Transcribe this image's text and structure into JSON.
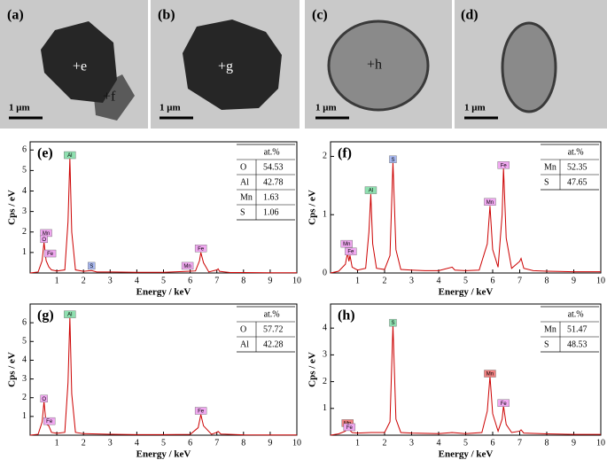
{
  "images": [
    {
      "label": "(a)",
      "markers": [
        "+e",
        "+f"
      ],
      "scale": "1 μm"
    },
    {
      "label": "(b)",
      "markers": [
        "+g"
      ],
      "scale": "1 μm"
    },
    {
      "label": "(c)",
      "markers": [
        "+h"
      ],
      "scale": "1 μm"
    },
    {
      "label": "(d)",
      "markers": [],
      "scale": "1 μm"
    }
  ],
  "chart_data": [
    {
      "type": "line",
      "label": "(e)",
      "x_label": "Energy / keV",
      "y_label": "Cps / eV",
      "color": "#cc0000",
      "x": [
        0,
        0.3,
        0.45,
        0.52,
        0.6,
        0.7,
        0.8,
        1.0,
        1.3,
        1.42,
        1.49,
        1.56,
        1.7,
        2.0,
        2.3,
        2.5,
        3,
        4,
        5,
        5.9,
        6.2,
        6.35,
        6.4,
        6.5,
        6.7,
        7.0,
        7.05,
        7.1,
        7.5,
        8,
        9,
        10
      ],
      "values": [
        0,
        0.05,
        0.6,
        1.5,
        0.6,
        0.3,
        0.15,
        0.1,
        0.15,
        2.5,
        5.6,
        2.0,
        0.15,
        0.08,
        0.12,
        0.05,
        0.05,
        0.03,
        0.03,
        0.08,
        0.1,
        0.6,
        1.0,
        0.5,
        0.05,
        0.15,
        0.2,
        0.08,
        0.02,
        0.02,
        0.01,
        0.01
      ],
      "xlim": [
        0,
        10
      ],
      "xticks": [
        1,
        2,
        3,
        4,
        5,
        6,
        7,
        8,
        9,
        10
      ],
      "ylim": [
        0,
        6.4
      ],
      "yticks": [
        1,
        2,
        3,
        4,
        5,
        6
      ],
      "annotations": [
        {
          "text": "Al",
          "x": 1.49,
          "y": 5.75,
          "color": "#8fe0b0"
        },
        {
          "text": "Mn",
          "x": 0.6,
          "y": 1.95,
          "color": "#f0a8f0"
        },
        {
          "text": "O",
          "x": 0.52,
          "y": 1.65,
          "color": "#f0a8f0"
        },
        {
          "text": "Fe",
          "x": 0.75,
          "y": 0.95,
          "color": "#f0a8f0"
        },
        {
          "text": "S",
          "x": 2.3,
          "y": 0.35,
          "color": "#a8b8f0"
        },
        {
          "text": "Mn",
          "x": 5.9,
          "y": 0.35,
          "color": "#f0a8f0"
        },
        {
          "text": "Fe",
          "x": 6.4,
          "y": 1.2,
          "color": "#f0a8f0"
        }
      ],
      "table": {
        "header": "at.%",
        "rows": [
          [
            "O",
            54.53
          ],
          [
            "Al",
            42.78
          ],
          [
            "Mn",
            1.63
          ],
          [
            "S",
            1.06
          ]
        ]
      }
    },
    {
      "type": "line",
      "label": "(f)",
      "x_label": "Energy / keV",
      "y_label": "Cps / eV",
      "color": "#cc0000",
      "x": [
        0,
        0.3,
        0.55,
        0.63,
        0.68,
        0.72,
        0.8,
        1.0,
        1.3,
        1.42,
        1.49,
        1.56,
        1.7,
        2.0,
        2.2,
        2.31,
        2.42,
        2.6,
        3.0,
        3.5,
        4.0,
        4.5,
        4.6,
        5.0,
        5.5,
        5.8,
        5.9,
        6.0,
        6.2,
        6.35,
        6.4,
        6.5,
        6.7,
        7.0,
        7.05,
        7.15,
        7.5,
        8,
        9,
        10
      ],
      "values": [
        0,
        0.03,
        0.15,
        0.35,
        0.2,
        0.3,
        0.1,
        0.05,
        0.08,
        0.7,
        1.35,
        0.5,
        0.08,
        0.06,
        0.3,
        1.9,
        0.4,
        0.06,
        0.05,
        0.04,
        0.04,
        0.1,
        0.05,
        0.04,
        0.05,
        0.5,
        1.15,
        0.4,
        0.1,
        1.0,
        1.8,
        0.6,
        0.08,
        0.2,
        0.25,
        0.08,
        0.04,
        0.03,
        0.02,
        0.02
      ],
      "xlim": [
        0,
        10
      ],
      "xticks": [
        1,
        2,
        3,
        4,
        5,
        6,
        7,
        8,
        9,
        10
      ],
      "ylim": [
        0,
        2.25
      ],
      "yticks": [
        0,
        1,
        2
      ],
      "annotations": [
        {
          "text": "S",
          "x": 2.31,
          "y": 1.95,
          "color": "#a8b8f0"
        },
        {
          "text": "Al",
          "x": 1.49,
          "y": 1.42,
          "color": "#8fe0b0"
        },
        {
          "text": "Mn",
          "x": 0.6,
          "y": 0.5,
          "color": "#f0a8f0"
        },
        {
          "text": "Fe",
          "x": 0.75,
          "y": 0.37,
          "color": "#f0a8f0"
        },
        {
          "text": "Mn",
          "x": 5.9,
          "y": 1.22,
          "color": "#f0a8f0"
        },
        {
          "text": "Fe",
          "x": 6.4,
          "y": 1.85,
          "color": "#f0a8f0"
        }
      ],
      "table": {
        "header": "at.%",
        "rows": [
          [
            "Mn",
            52.35
          ],
          [
            "S",
            47.65
          ]
        ]
      }
    },
    {
      "type": "line",
      "label": "(g)",
      "x_label": "Energy / keV",
      "y_label": "Cps / eV",
      "color": "#cc0000",
      "x": [
        0,
        0.3,
        0.45,
        0.52,
        0.6,
        0.7,
        0.8,
        1.0,
        1.3,
        1.42,
        1.49,
        1.56,
        1.7,
        2.0,
        3,
        4,
        5,
        6.0,
        6.3,
        6.4,
        6.5,
        6.8,
        7.0,
        7.05,
        7.15,
        8,
        9,
        10
      ],
      "values": [
        0,
        0.05,
        0.7,
        1.8,
        0.6,
        0.5,
        0.15,
        0.1,
        0.15,
        2.8,
        6.3,
        2.2,
        0.15,
        0.08,
        0.05,
        0.03,
        0.03,
        0.04,
        0.4,
        1.1,
        0.5,
        0.05,
        0.15,
        0.2,
        0.06,
        0.02,
        0.01,
        0.01
      ],
      "xlim": [
        0,
        10
      ],
      "xticks": [
        1,
        2,
        3,
        4,
        5,
        6,
        7,
        8,
        9,
        10
      ],
      "ylim": [
        0,
        7
      ],
      "yticks": [
        1,
        2,
        3,
        4,
        5,
        6
      ],
      "annotations": [
        {
          "text": "Al",
          "x": 1.49,
          "y": 6.45,
          "color": "#8fe0b0"
        },
        {
          "text": "O",
          "x": 0.52,
          "y": 1.95,
          "color": "#f0a8f0"
        },
        {
          "text": "Fe",
          "x": 0.72,
          "y": 0.75,
          "color": "#f0a8f0"
        },
        {
          "text": "Fe",
          "x": 6.4,
          "y": 1.3,
          "color": "#f0a8f0"
        }
      ],
      "table": {
        "header": "at.%",
        "rows": [
          [
            "O",
            57.72
          ],
          [
            "Al",
            42.28
          ]
        ]
      }
    },
    {
      "type": "line",
      "label": "(h)",
      "x_label": "Energy / keV",
      "y_label": "Cps / eV",
      "color": "#cc0000",
      "x": [
        0,
        0.3,
        0.55,
        0.63,
        0.7,
        0.8,
        1.0,
        1.5,
        2.0,
        2.2,
        2.31,
        2.42,
        2.6,
        3.0,
        4.0,
        4.5,
        5.0,
        5.6,
        5.8,
        5.9,
        6.0,
        6.2,
        6.35,
        6.4,
        6.5,
        6.7,
        7.0,
        7.05,
        7.15,
        8,
        9,
        10
      ],
      "values": [
        0,
        0.05,
        0.15,
        0.3,
        0.2,
        0.1,
        0.08,
        0.1,
        0.1,
        0.5,
        4.1,
        0.6,
        0.1,
        0.08,
        0.06,
        0.1,
        0.06,
        0.1,
        0.9,
        2.2,
        0.8,
        0.15,
        0.6,
        1.1,
        0.4,
        0.1,
        0.15,
        0.2,
        0.08,
        0.05,
        0.03,
        0.03
      ],
      "xlim": [
        0,
        10
      ],
      "xticks": [
        1,
        2,
        3,
        4,
        5,
        6,
        7,
        8,
        9,
        10
      ],
      "ylim": [
        0,
        4.9
      ],
      "yticks": [
        1,
        2,
        3,
        4
      ],
      "annotations": [
        {
          "text": "S",
          "x": 2.31,
          "y": 4.2,
          "color": "#8fe0b0"
        },
        {
          "text": "Mn",
          "x": 5.9,
          "y": 2.3,
          "color": "#f08080"
        },
        {
          "text": "Fe",
          "x": 6.4,
          "y": 1.2,
          "color": "#f0a8f0"
        },
        {
          "text": "Mn",
          "x": 0.63,
          "y": 0.45,
          "color": "#f08080"
        },
        {
          "text": "Fe",
          "x": 0.7,
          "y": 0.3,
          "color": "#f0a8f0"
        }
      ],
      "table": {
        "header": "at.%",
        "rows": [
          [
            "Mn",
            51.47
          ],
          [
            "S",
            48.53
          ]
        ]
      }
    }
  ]
}
